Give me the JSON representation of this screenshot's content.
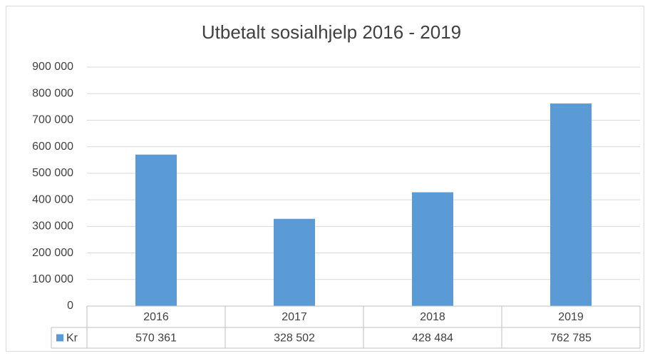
{
  "chart_data": {
    "type": "bar",
    "title": "Utbetalt sosialhjelp 2016 - 2019",
    "categories": [
      "2016",
      "2017",
      "2018",
      "2019"
    ],
    "series": [
      {
        "name": "Kr",
        "color": "#5b9bd5",
        "values": [
          570361,
          328502,
          428484,
          762785
        ],
        "value_labels": [
          "570 361",
          "328 502",
          "428 484",
          "762 785"
        ]
      }
    ],
    "ylim": [
      0,
      900000
    ],
    "yticks": [
      0,
      {
        "value": 100000,
        "label": "100 000"
      },
      {
        "value": 200000,
        "label": "200 000"
      },
      {
        "value": 300000,
        "label": "300 000"
      },
      {
        "value": 400000,
        "label": "400 000"
      },
      {
        "value": 500000,
        "label": "500 000"
      },
      {
        "value": 600000,
        "label": "600 000"
      },
      {
        "value": 700000,
        "label": "700 000"
      },
      {
        "value": 800000,
        "label": "800 000"
      },
      {
        "value": 900000,
        "label": "900 000"
      }
    ],
    "grid": true
  }
}
